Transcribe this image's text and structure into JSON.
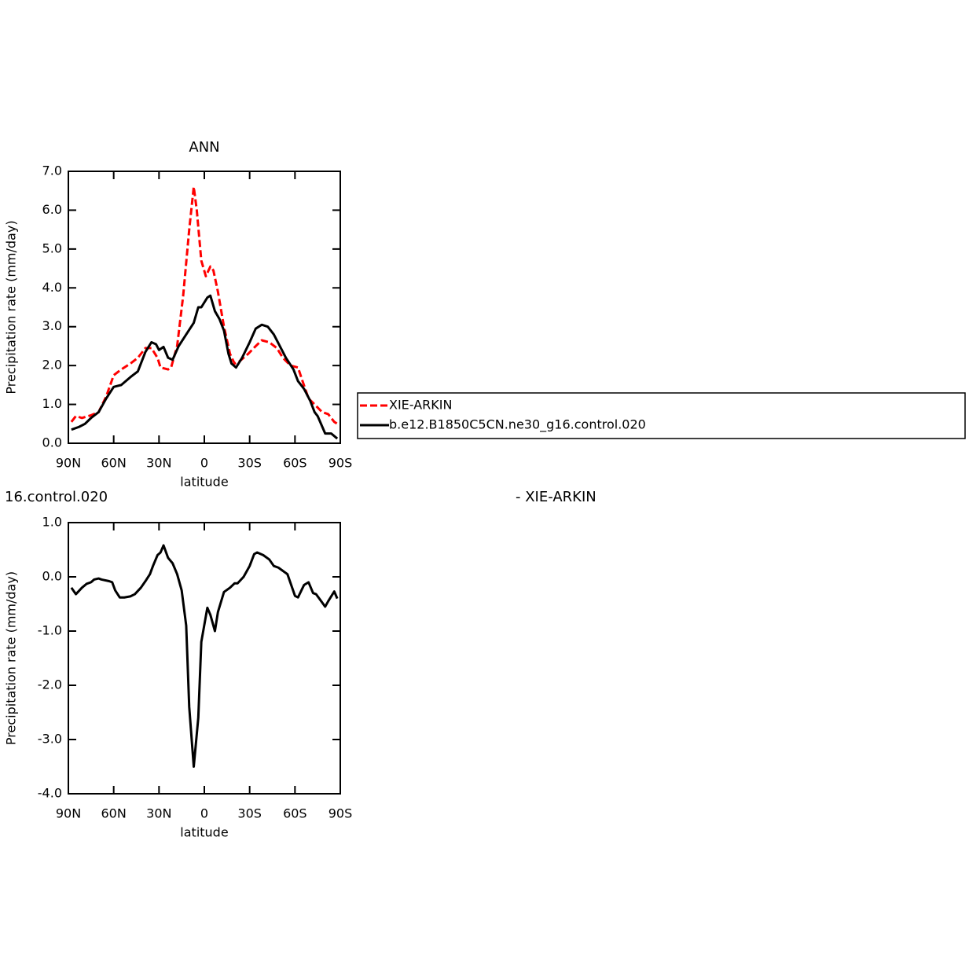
{
  "chart_data": [
    {
      "type": "line",
      "title": "ANN",
      "xlabel": "latitude",
      "ylabel": "Precipitation rate (mm/day)",
      "xlim": [
        90,
        -90
      ],
      "xticks": [
        {
          "value": 90,
          "label": "90N"
        },
        {
          "value": 60,
          "label": "60N"
        },
        {
          "value": 30,
          "label": "30N"
        },
        0,
        {
          "value": -30,
          "label": "30S"
        },
        {
          "value": -60,
          "label": "60S"
        },
        {
          "value": -90,
          "label": "90S"
        }
      ],
      "ylim": [
        0,
        7
      ],
      "yticks": [
        {
          "value": 0,
          "label": "0.0"
        },
        {
          "value": 1,
          "label": "1.0"
        },
        {
          "value": 2,
          "label": "2.0"
        },
        {
          "value": 3,
          "label": "3.0"
        },
        {
          "value": 4,
          "label": "4.0"
        },
        {
          "value": 5,
          "label": "5.0"
        },
        {
          "value": 6,
          "label": "6.0"
        },
        {
          "value": 7,
          "label": "7.0"
        }
      ],
      "legend": "right",
      "series": [
        {
          "name": "XIE-ARKIN",
          "color": "#ff0000",
          "dash": "dashed",
          "x": [
            88,
            85,
            81,
            75,
            70,
            65,
            60,
            55,
            49,
            44,
            39,
            35,
            31,
            29,
            24,
            22,
            18,
            14,
            10,
            7,
            5,
            2,
            -1,
            -4,
            -6,
            -9,
            -13,
            -17,
            -20,
            -23,
            -29,
            -34,
            -38,
            -43,
            -48,
            -52,
            -57,
            -62,
            -65,
            -69,
            -73,
            -78,
            -82,
            -86,
            -88
          ],
          "values": [
            0.55,
            0.7,
            0.65,
            0.72,
            0.8,
            1.2,
            1.75,
            1.9,
            2.05,
            2.2,
            2.45,
            2.45,
            2.2,
            1.95,
            1.9,
            1.95,
            2.5,
            3.8,
            5.5,
            6.6,
            6.0,
            4.7,
            4.3,
            4.55,
            4.45,
            3.9,
            3.0,
            2.3,
            2.05,
            2.1,
            2.3,
            2.5,
            2.65,
            2.6,
            2.45,
            2.2,
            2.0,
            1.95,
            1.6,
            1.15,
            1.0,
            0.8,
            0.75,
            0.55,
            0.5
          ]
        },
        {
          "name": "b.e12.B1850C5CN.ne30_g16.control.020",
          "color": "#000000",
          "dash": "solid",
          "x": [
            88,
            83,
            79,
            75,
            70,
            65,
            60,
            55,
            49,
            44,
            39,
            35,
            32,
            30,
            27,
            24,
            21,
            17,
            12,
            7,
            4,
            2,
            -2,
            -4,
            -7,
            -10,
            -13,
            -16,
            -18,
            -21,
            -25,
            -30,
            -34,
            -38,
            -42,
            -46,
            -50,
            -54,
            -59,
            -62,
            -66,
            -70,
            -73,
            -75,
            -80,
            -84,
            -88
          ],
          "values": [
            0.35,
            0.42,
            0.5,
            0.65,
            0.8,
            1.15,
            1.45,
            1.5,
            1.7,
            1.85,
            2.35,
            2.6,
            2.55,
            2.4,
            2.48,
            2.2,
            2.15,
            2.5,
            2.8,
            3.1,
            3.5,
            3.5,
            3.75,
            3.8,
            3.4,
            3.2,
            2.9,
            2.3,
            2.05,
            1.95,
            2.2,
            2.6,
            2.95,
            3.05,
            3.0,
            2.8,
            2.5,
            2.2,
            1.9,
            1.6,
            1.4,
            1.1,
            0.8,
            0.7,
            0.25,
            0.25,
            0.12
          ]
        }
      ]
    },
    {
      "type": "line",
      "title_left": "16.control.020",
      "title_right": "- XIE-ARKIN",
      "xlabel": "latitude",
      "ylabel": "Precipitation rate (mm/day)",
      "xlim": [
        90,
        -90
      ],
      "xticks": [
        {
          "value": 90,
          "label": "90N"
        },
        {
          "value": 60,
          "label": "60N"
        },
        {
          "value": 30,
          "label": "30N"
        },
        0,
        {
          "value": -30,
          "label": "30S"
        },
        {
          "value": -60,
          "label": "60S"
        },
        {
          "value": -90,
          "label": "90S"
        }
      ],
      "ylim": [
        -4,
        1
      ],
      "yticks": [
        {
          "value": -4,
          "label": "-4.0"
        },
        {
          "value": -3,
          "label": "-3.0"
        },
        {
          "value": -2,
          "label": "-2.0"
        },
        {
          "value": -1,
          "label": "-1.0"
        },
        {
          "value": 0,
          "label": "0.0"
        },
        {
          "value": 1,
          "label": "1.0"
        }
      ],
      "color": "#000000",
      "x": [
        88,
        85,
        81,
        78,
        75,
        73,
        70,
        68,
        63,
        61,
        59,
        56,
        53,
        49,
        46,
        42,
        39,
        36,
        34,
        31,
        29,
        27,
        24,
        21,
        18,
        15,
        12,
        10,
        7,
        4,
        2,
        -2,
        -4,
        -7,
        -9,
        -13,
        -17,
        -20,
        -22,
        -26,
        -30,
        -33,
        -35,
        -39,
        -43,
        -46,
        -49,
        -55,
        -60,
        -62,
        -66,
        -69,
        -72,
        -74,
        -80,
        -82,
        -86,
        -88
      ],
      "values": [
        -0.2,
        -0.32,
        -0.2,
        -0.13,
        -0.1,
        -0.05,
        -0.03,
        -0.05,
        -0.08,
        -0.1,
        -0.25,
        -0.38,
        -0.38,
        -0.36,
        -0.32,
        -0.2,
        -0.08,
        0.05,
        0.2,
        0.4,
        0.45,
        0.58,
        0.35,
        0.25,
        0.05,
        -0.25,
        -0.9,
        -2.4,
        -3.5,
        -2.6,
        -1.2,
        -0.57,
        -0.7,
        -1.0,
        -0.65,
        -0.28,
        -0.2,
        -0.12,
        -0.12,
        0.0,
        0.2,
        0.42,
        0.45,
        0.4,
        0.32,
        0.2,
        0.17,
        0.05,
        -0.35,
        -0.38,
        -0.15,
        -0.1,
        -0.3,
        -0.32,
        -0.55,
        -0.45,
        -0.27,
        -0.4
      ]
    }
  ]
}
